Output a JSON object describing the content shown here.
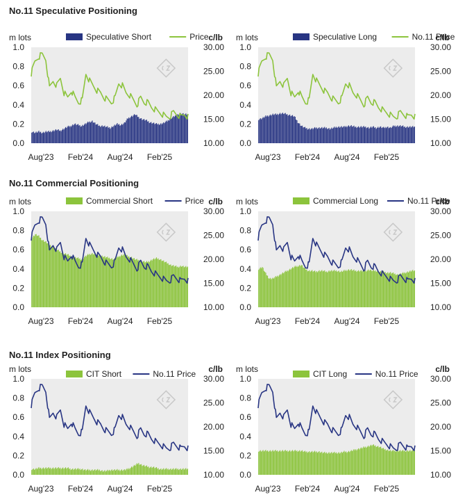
{
  "sections": [
    {
      "title": "No.11 Speculative Positioning"
    },
    {
      "title": "No.11 Commercial Positioning"
    },
    {
      "title": "No.11 Index Positioning"
    }
  ],
  "colors": {
    "navy": "#283583",
    "green": "#8cc43c",
    "plot_bg": "#ececec",
    "logo": "#c8c8c8"
  },
  "chart_data": [
    {
      "type": "bar+line",
      "title": "",
      "left_axis_label": "m lots",
      "right_axis_label": "c/lb",
      "legend": [
        {
          "label": "Speculative Short",
          "kind": "bar",
          "color": "navy"
        },
        {
          "label": "Price",
          "kind": "line",
          "color": "green"
        }
      ],
      "bar_color": "navy",
      "line_color": "green",
      "x_ticks": [
        "Aug'23",
        "Feb'24",
        "Aug'24",
        "Feb'25"
      ],
      "y_left": {
        "min": 0,
        "max": 1,
        "ticks": [
          "0.0",
          "0.2",
          "0.4",
          "0.6",
          "0.8",
          "1.0"
        ]
      },
      "y_right": {
        "min": 10,
        "max": 30,
        "ticks": [
          "10.00",
          "15.00",
          "20.00",
          "25.00",
          "30.00"
        ]
      },
      "bars": [
        0.12,
        0.11,
        0.12,
        0.11,
        0.12,
        0.12,
        0.13,
        0.14,
        0.13,
        0.15,
        0.17,
        0.18,
        0.2,
        0.19,
        0.18,
        0.2,
        0.22,
        0.23,
        0.2,
        0.18,
        0.18,
        0.17,
        0.16,
        0.18,
        0.2,
        0.19,
        0.21,
        0.26,
        0.28,
        0.3,
        0.27,
        0.25,
        0.24,
        0.22,
        0.21,
        0.2,
        0.2,
        0.21,
        0.23,
        0.26,
        0.28,
        0.3,
        0.31,
        0.3
      ],
      "price": [
        24.5,
        27.0,
        28.0,
        28.5,
        27.5,
        21.5,
        23.0,
        22.0,
        23.5,
        20.5,
        19.5,
        21.0,
        19.5,
        18.5,
        19.0,
        24.5,
        23.0,
        22.0,
        21.0,
        20.5,
        19.5,
        19.0,
        18.5,
        19.5,
        22.5,
        22.0,
        20.5,
        20.0,
        19.0,
        18.0,
        19.5,
        18.5,
        18.5,
        17.5,
        17.0,
        16.5,
        16.0,
        15.5,
        15.5,
        16.5,
        16.0,
        15.5,
        16.0,
        15.5
      ]
    },
    {
      "type": "bar+line",
      "title": "",
      "left_axis_label": "m lots",
      "right_axis_label": "c/lb",
      "legend": [
        {
          "label": "Speculative Long",
          "kind": "bar",
          "color": "navy"
        },
        {
          "label": "No.11 Price",
          "kind": "line",
          "color": "green"
        }
      ],
      "bar_color": "navy",
      "line_color": "green",
      "x_ticks": [
        "Aug'23",
        "Feb'24",
        "Aug'24",
        "Feb'25"
      ],
      "y_left": {
        "min": 0,
        "max": 1,
        "ticks": [
          "0.0",
          "0.2",
          "0.4",
          "0.6",
          "0.8",
          "1.0"
        ]
      },
      "y_right": {
        "min": 10,
        "max": 30,
        "ticks": [
          "10.00",
          "15.00",
          "20.00",
          "25.00",
          "30.00"
        ]
      },
      "bars": [
        0.25,
        0.26,
        0.28,
        0.29,
        0.3,
        0.3,
        0.31,
        0.31,
        0.3,
        0.29,
        0.28,
        0.22,
        0.18,
        0.16,
        0.15,
        0.15,
        0.16,
        0.16,
        0.16,
        0.16,
        0.15,
        0.16,
        0.17,
        0.17,
        0.17,
        0.18,
        0.18,
        0.17,
        0.17,
        0.17,
        0.17,
        0.16,
        0.17,
        0.16,
        0.17,
        0.16,
        0.17,
        0.16,
        0.18,
        0.18,
        0.18,
        0.17,
        0.17,
        0.17
      ],
      "price": [
        24.5,
        27.0,
        28.0,
        28.5,
        27.5,
        21.5,
        23.0,
        22.0,
        23.5,
        20.5,
        19.5,
        21.0,
        19.5,
        18.5,
        19.0,
        24.5,
        23.0,
        22.0,
        21.0,
        20.5,
        19.5,
        19.0,
        18.5,
        19.5,
        22.5,
        22.0,
        20.5,
        20.0,
        19.0,
        18.0,
        19.5,
        18.5,
        18.5,
        17.5,
        17.0,
        16.5,
        16.0,
        15.5,
        15.5,
        16.5,
        16.0,
        15.5,
        16.0,
        15.5
      ]
    },
    {
      "type": "bar+line",
      "title": "",
      "left_axis_label": "m lots",
      "right_axis_label": "c/lb",
      "legend": [
        {
          "label": "Commercial Short",
          "kind": "bar",
          "color": "green"
        },
        {
          "label": "Price",
          "kind": "line",
          "color": "navy"
        }
      ],
      "bar_color": "green",
      "line_color": "navy",
      "x_ticks": [
        "Aug'23",
        "Feb'24",
        "Aug'24",
        "Feb'25"
      ],
      "y_left": {
        "min": 0,
        "max": 1,
        "ticks": [
          "0.0",
          "0.2",
          "0.4",
          "0.6",
          "0.8",
          "1.0"
        ]
      },
      "y_right": {
        "min": 10,
        "max": 30,
        "ticks": [
          "10.00",
          "15.00",
          "20.00",
          "25.00",
          "30.00"
        ]
      },
      "bars": [
        0.72,
        0.76,
        0.74,
        0.7,
        0.68,
        0.65,
        0.63,
        0.6,
        0.58,
        0.56,
        0.55,
        0.53,
        0.52,
        0.51,
        0.5,
        0.53,
        0.55,
        0.56,
        0.55,
        0.54,
        0.53,
        0.52,
        0.51,
        0.5,
        0.52,
        0.54,
        0.55,
        0.53,
        0.52,
        0.5,
        0.49,
        0.48,
        0.47,
        0.48,
        0.5,
        0.51,
        0.5,
        0.48,
        0.46,
        0.44,
        0.43,
        0.42,
        0.43,
        0.42
      ],
      "price": [
        24.5,
        27.0,
        28.0,
        28.5,
        27.5,
        21.5,
        23.0,
        22.0,
        23.5,
        20.5,
        19.5,
        21.0,
        19.5,
        18.5,
        19.0,
        24.5,
        23.0,
        22.0,
        21.0,
        20.5,
        19.5,
        19.0,
        18.5,
        19.5,
        22.5,
        22.0,
        20.5,
        20.0,
        19.0,
        18.0,
        19.5,
        18.5,
        18.5,
        17.5,
        17.0,
        16.5,
        16.0,
        15.5,
        15.5,
        16.5,
        16.0,
        15.5,
        16.0,
        15.5
      ]
    },
    {
      "type": "bar+line",
      "title": "",
      "left_axis_label": "m lots",
      "right_axis_label": "c/lb",
      "legend": [
        {
          "label": "Commercial Long",
          "kind": "bar",
          "color": "green"
        },
        {
          "label": "No.11 Price",
          "kind": "line",
          "color": "navy"
        }
      ],
      "bar_color": "green",
      "line_color": "navy",
      "x_ticks": [
        "Aug'23",
        "Feb'24",
        "Aug'24",
        "Feb'25"
      ],
      "y_left": {
        "min": 0,
        "max": 1,
        "ticks": [
          "0.0",
          "0.2",
          "0.4",
          "0.6",
          "0.8",
          "1.0"
        ]
      },
      "y_right": {
        "min": 10,
        "max": 30,
        "ticks": [
          "10.00",
          "15.00",
          "20.00",
          "25.00",
          "30.00"
        ]
      },
      "bars": [
        0.4,
        0.42,
        0.35,
        0.3,
        0.3,
        0.32,
        0.34,
        0.36,
        0.38,
        0.4,
        0.42,
        0.43,
        0.44,
        0.4,
        0.38,
        0.38,
        0.37,
        0.38,
        0.38,
        0.37,
        0.38,
        0.38,
        0.38,
        0.37,
        0.38,
        0.39,
        0.39,
        0.38,
        0.38,
        0.38,
        0.38,
        0.39,
        0.38,
        0.38,
        0.37,
        0.37,
        0.36,
        0.36,
        0.35,
        0.34,
        0.35,
        0.36,
        0.37,
        0.38
      ],
      "price": [
        24.5,
        27.0,
        28.0,
        28.5,
        27.5,
        21.5,
        23.0,
        22.0,
        23.5,
        20.5,
        19.5,
        21.0,
        19.5,
        18.5,
        19.0,
        24.5,
        23.0,
        22.0,
        21.0,
        20.5,
        19.5,
        19.0,
        18.5,
        19.5,
        22.5,
        22.0,
        20.5,
        20.0,
        19.0,
        18.0,
        19.5,
        18.5,
        18.5,
        17.5,
        17.0,
        16.5,
        16.0,
        15.5,
        15.5,
        16.5,
        16.0,
        15.5,
        16.0,
        15.5
      ]
    },
    {
      "type": "bar+line",
      "title": "",
      "left_axis_label": "m lots",
      "right_axis_label": "c/lb",
      "legend": [
        {
          "label": "CIT Short",
          "kind": "bar",
          "color": "green"
        },
        {
          "label": "No.11 Price",
          "kind": "line",
          "color": "navy"
        }
      ],
      "bar_color": "green",
      "line_color": "navy",
      "x_ticks": [
        "Aug'23",
        "Feb'24",
        "Aug'24",
        "Feb'25"
      ],
      "y_left": {
        "min": 0,
        "max": 1,
        "ticks": [
          "0.0",
          "0.2",
          "0.4",
          "0.6",
          "0.8",
          "1.0"
        ]
      },
      "y_right": {
        "min": 10,
        "max": 30,
        "ticks": [
          "10.00",
          "15.00",
          "20.00",
          "25.00",
          "30.00"
        ]
      },
      "bars": [
        0.06,
        0.06,
        0.07,
        0.07,
        0.07,
        0.07,
        0.07,
        0.07,
        0.07,
        0.07,
        0.07,
        0.06,
        0.06,
        0.06,
        0.06,
        0.05,
        0.05,
        0.05,
        0.05,
        0.05,
        0.04,
        0.04,
        0.05,
        0.05,
        0.05,
        0.05,
        0.05,
        0.06,
        0.08,
        0.1,
        0.12,
        0.1,
        0.09,
        0.08,
        0.08,
        0.07,
        0.06,
        0.06,
        0.06,
        0.06,
        0.06,
        0.06,
        0.06,
        0.06
      ],
      "price": [
        24.5,
        27.0,
        28.0,
        28.5,
        27.5,
        21.5,
        23.0,
        22.0,
        23.5,
        20.5,
        19.5,
        21.0,
        19.5,
        18.5,
        19.0,
        24.5,
        23.0,
        22.0,
        21.0,
        20.5,
        19.5,
        19.0,
        18.5,
        19.5,
        22.5,
        22.0,
        20.5,
        20.0,
        19.0,
        18.0,
        19.5,
        18.5,
        18.5,
        17.5,
        17.0,
        16.5,
        16.0,
        15.5,
        15.5,
        16.5,
        16.0,
        15.5,
        16.0,
        15.5
      ]
    },
    {
      "type": "bar+line",
      "title": "",
      "left_axis_label": "m lots",
      "right_axis_label": "c/lb",
      "legend": [
        {
          "label": "CIT Long",
          "kind": "bar",
          "color": "green"
        },
        {
          "label": "No.11 Price",
          "kind": "line",
          "color": "navy"
        }
      ],
      "bar_color": "green",
      "line_color": "navy",
      "x_ticks": [
        "Aug'23",
        "Feb'24",
        "Aug'24",
        "Feb'25"
      ],
      "y_left": {
        "min": 0,
        "max": 1,
        "ticks": [
          "0.0",
          "0.2",
          "0.4",
          "0.6",
          "0.8",
          "1.0"
        ]
      },
      "y_right": {
        "min": 10,
        "max": 30,
        "ticks": [
          "10.00",
          "15.00",
          "20.00",
          "25.00",
          "30.00"
        ]
      },
      "bars": [
        0.25,
        0.25,
        0.25,
        0.25,
        0.25,
        0.25,
        0.25,
        0.25,
        0.25,
        0.25,
        0.25,
        0.25,
        0.25,
        0.24,
        0.24,
        0.24,
        0.24,
        0.24,
        0.23,
        0.23,
        0.23,
        0.23,
        0.23,
        0.23,
        0.24,
        0.24,
        0.25,
        0.26,
        0.27,
        0.28,
        0.29,
        0.3,
        0.31,
        0.3,
        0.29,
        0.27,
        0.26,
        0.25,
        0.25,
        0.25,
        0.25,
        0.25,
        0.25,
        0.25
      ],
      "price": [
        24.5,
        27.0,
        28.0,
        28.5,
        27.5,
        21.5,
        23.0,
        22.0,
        23.5,
        20.5,
        19.5,
        21.0,
        19.5,
        18.5,
        19.0,
        24.5,
        23.0,
        22.0,
        21.0,
        20.5,
        19.5,
        19.0,
        18.5,
        19.5,
        22.5,
        22.0,
        20.5,
        20.0,
        19.0,
        18.0,
        19.5,
        18.5,
        18.5,
        17.5,
        17.0,
        16.5,
        16.0,
        15.5,
        15.5,
        16.5,
        16.0,
        15.5,
        16.0,
        15.5
      ]
    }
  ]
}
